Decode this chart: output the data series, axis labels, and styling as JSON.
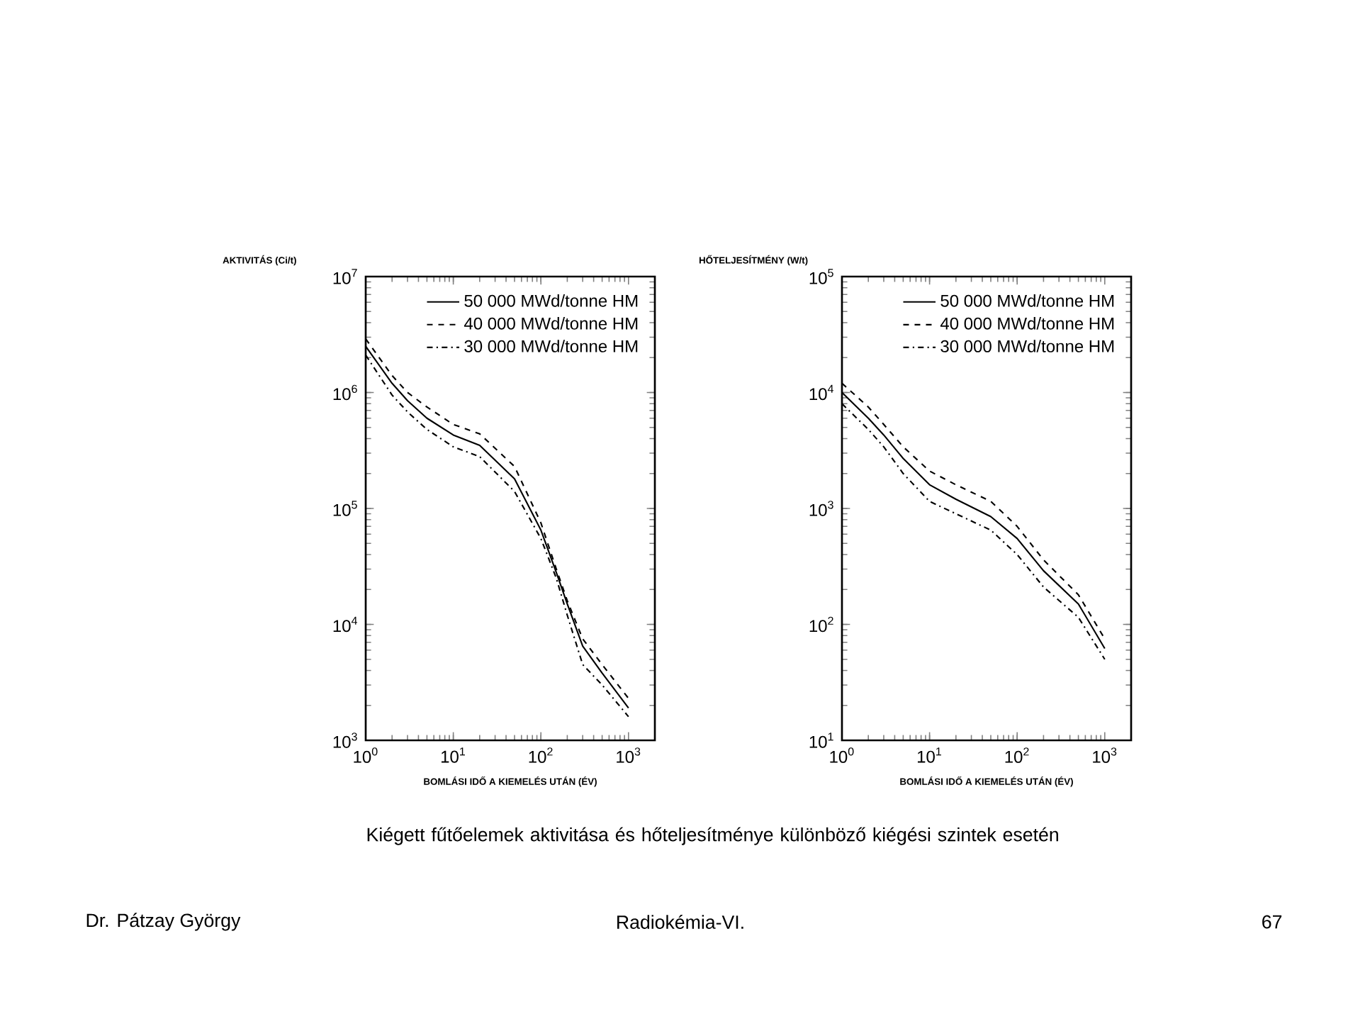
{
  "chart_data": [
    {
      "type": "line",
      "ylabel": "AKTIVITÁS (Ci/t)",
      "xlabel": "BOMLÁSI IDŐ A KIEMELÉS UTÁN (ÉV)",
      "log": "xy",
      "grid": false,
      "legend": "top right",
      "xlim": [
        1,
        2000
      ],
      "ylim": [
        1000,
        10000000
      ],
      "xticks": [
        {
          "value": 1,
          "label": "10$^{0}$"
        },
        {
          "value": 10,
          "label": "10$^{1}$"
        },
        {
          "value": 100,
          "label": "10$^{2}$"
        },
        {
          "value": 1000,
          "label": "10$^{3}$"
        }
      ],
      "yticks": [
        {
          "value": 1000,
          "label": "10$^{3}$"
        },
        {
          "value": 10000,
          "label": "10$^{4}$"
        },
        {
          "value": 100000,
          "label": "10$^{5}$"
        },
        {
          "value": 1000000,
          "label": "10$^{6}$"
        },
        {
          "value": 10000000,
          "label": "10$^{7}$"
        }
      ],
      "x": [
        1,
        2,
        3,
        5,
        10,
        20,
        50,
        100,
        150,
        200,
        300,
        500,
        1000
      ],
      "series": [
        {
          "name": "50 000 MWd/tonne HM",
          "color": "#000000",
          "line_style": "solid",
          "values": [
            2500000,
            1200000,
            850000,
            600000,
            430000,
            350000,
            180000,
            65000,
            28000,
            15000,
            6500,
            3800,
            1900
          ]
        },
        {
          "name": "40 000 MWd/tonne HM",
          "color": "#000000",
          "line_style": "dashed",
          "values": [
            2900000,
            1400000,
            1000000,
            750000,
            530000,
            440000,
            230000,
            75000,
            30000,
            16000,
            7500,
            4500,
            2300
          ]
        },
        {
          "name": "30 000 MWd/tonne HM",
          "color": "#000000",
          "line_style": "dashdot",
          "values": [
            2100000,
            950000,
            680000,
            480000,
            340000,
            280000,
            140000,
            55000,
            25000,
            12000,
            4500,
            3000,
            1600
          ]
        }
      ],
      "annotations": [
        "Kiégett fűtőelemek aktivitása és hőteljesítménye különböző kiégési szintek esetén",
        "Dr. Pátzay György",
        "Radiokémia-VI.",
        "67"
      ]
    },
    {
      "type": "line",
      "ylabel": "HŐTELJESÍTMÉNY (W/t)",
      "xlabel": "BOMLÁSI IDŐ A KIEMELÉS UTÁN (ÉV)",
      "log": "xy",
      "grid": false,
      "legend": "top right",
      "xlim": [
        1,
        2000
      ],
      "ylim": [
        10,
        100000
      ],
      "xticks": [
        {
          "value": 1,
          "label": "10$^{0}$"
        },
        {
          "value": 10,
          "label": "10$^{1}$"
        },
        {
          "value": 100,
          "label": "10$^{2}$"
        },
        {
          "value": 1000,
          "label": "10$^{3}$"
        }
      ],
      "yticks": [
        {
          "value": 10,
          "label": "10$^{1}$"
        },
        {
          "value": 100,
          "label": "10$^{2}$"
        },
        {
          "value": 1000,
          "label": "10$^{3}$"
        },
        {
          "value": 10000,
          "label": "10$^{4}$"
        },
        {
          "value": 100000,
          "label": "10$^{5}$"
        }
      ],
      "x": [
        1,
        2,
        3,
        5,
        10,
        20,
        50,
        100,
        200,
        500,
        1000
      ],
      "series": [
        {
          "name": "50 000 MWd/tonne HM",
          "color": "#000000",
          "line_style": "solid",
          "values": [
            10000,
            6000,
            4300,
            2700,
            1600,
            1200,
            850,
            550,
            290,
            150,
            62
          ]
        },
        {
          "name": "40 000 MWd/tonne HM",
          "color": "#000000",
          "line_style": "dashed",
          "values": [
            12000,
            7500,
            5300,
            3400,
            2100,
            1600,
            1150,
            700,
            360,
            180,
            75
          ]
        },
        {
          "name": "30 000 MWd/tonne HM",
          "color": "#000000",
          "line_style": "dashdot",
          "values": [
            8000,
            4800,
            3400,
            2000,
            1150,
            900,
            650,
            400,
            210,
            115,
            50
          ]
        }
      ]
    }
  ]
}
